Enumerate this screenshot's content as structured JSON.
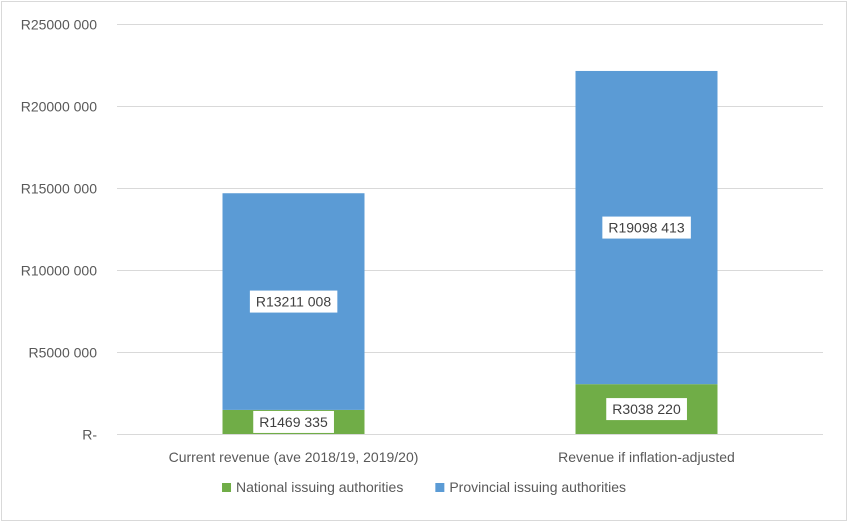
{
  "chart_data": {
    "type": "bar",
    "stacked": true,
    "categories": [
      "Current revenue (ave 2018/19, 2019/20)",
      "Revenue if inflation-adjusted"
    ],
    "series": [
      {
        "name": "National issuing authorities",
        "values": [
          1469335,
          3038220
        ],
        "labels": [
          "R1469 335",
          "R3038 220"
        ],
        "color": "#70ad47"
      },
      {
        "name": "Provincial issuing authorities",
        "values": [
          13211008,
          19098413
        ],
        "labels": [
          "R13211 008",
          "R19098 413"
        ],
        "color": "#5b9bd5"
      }
    ],
    "ylim": [
      0,
      25000000
    ],
    "yticks": [
      0,
      5000000,
      10000000,
      15000000,
      20000000,
      25000000
    ],
    "ytick_labels": [
      "R-",
      "R5000 000",
      "R10000 000",
      "R15000 000",
      "R20000 000",
      "R25000 000"
    ],
    "grid": true,
    "legend_position": "bottom",
    "gridline_color": "#d9d9d9"
  }
}
